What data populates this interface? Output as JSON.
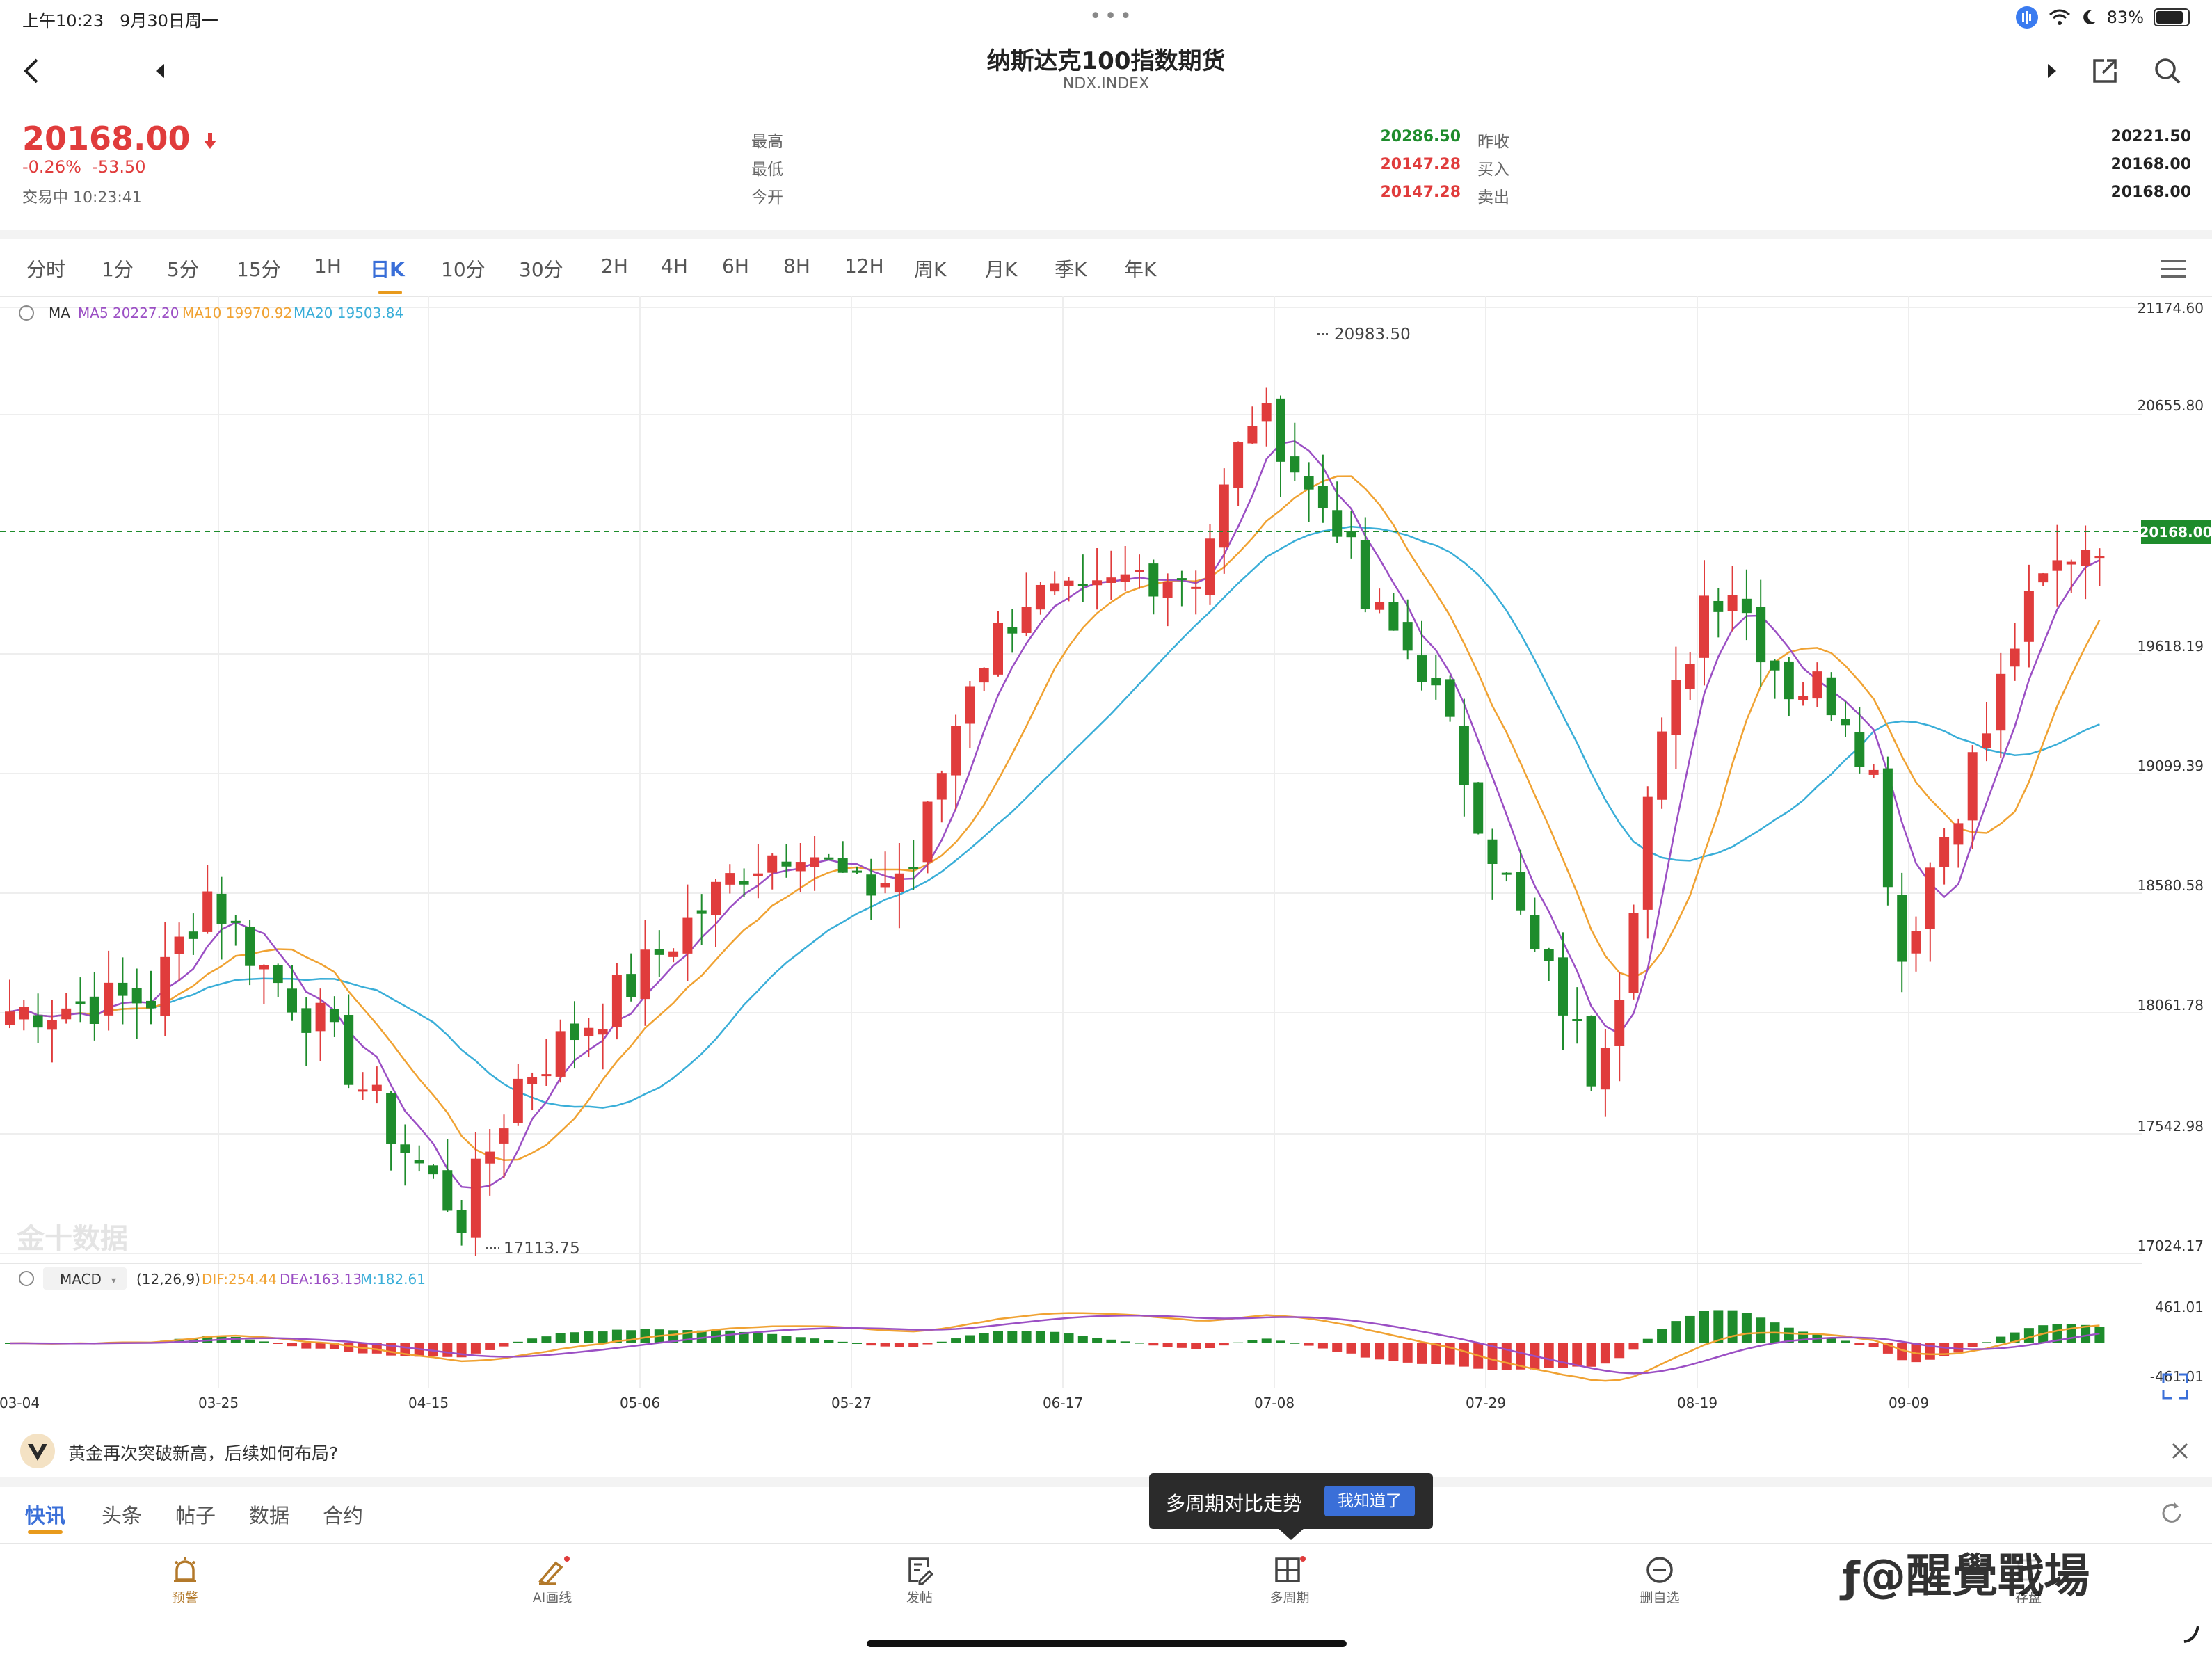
{
  "status_bar": {
    "time": "上午10:23",
    "date": "9月30日周一",
    "battery": "83%"
  },
  "header": {
    "title": "纳斯达克100指数期货",
    "subtitle": "NDX.INDEX"
  },
  "quote": {
    "price": "20168.00",
    "change_pct": "-0.26%",
    "change_abs": "-53.50",
    "status": "交易中 10:23:41",
    "left_labels": [
      "最高",
      "最低",
      "今开"
    ],
    "left_values": [
      "20286.50",
      "20147.28",
      "20147.28"
    ],
    "right_labels": [
      "昨收",
      "买入",
      "卖出"
    ],
    "right_values": [
      "20221.50",
      "20168.00",
      "20168.00"
    ]
  },
  "colors": {
    "up": "#e03c3c",
    "down": "#1e8c2c",
    "accent": "#3a6fd8",
    "ma5": "#9b4fc4",
    "ma10": "#f0a232",
    "ma20": "#3aaed8"
  },
  "periods": [
    "分时",
    "1分",
    "5分",
    "15分",
    "1H",
    "日K",
    "10分",
    "30分",
    "2H",
    "4H",
    "6H",
    "8H",
    "12H",
    "周K",
    "月K",
    "季K",
    "年K"
  ],
  "active_period": "日K",
  "chart_data": [
    {
      "type": "candlestick",
      "legend": {
        "name": "MA",
        "ma5": "MA5 20227.20",
        "ma10": "MA10 19970.92",
        "ma20": "MA20 19503.84"
      },
      "y_ticks": [
        "21174.60",
        "20655.80",
        "19618.19",
        "19099.39",
        "18580.58",
        "18061.78",
        "17542.98",
        "17024.17"
      ],
      "ylim": [
        17024.17,
        21174.6
      ],
      "x_ticks": [
        "03-04",
        "03-25",
        "04-15",
        "05-06",
        "05-27",
        "06-17",
        "07-08",
        "07-29",
        "08-19",
        "09-09"
      ],
      "current_price_label": "20168.00",
      "max_label": "20983.50",
      "min_label": "17113.75",
      "watermark": "金十数据"
    },
    {
      "type": "macd",
      "legend": {
        "name": "MACD",
        "params": "(12,26,9)",
        "dif": "DIF:254.44",
        "dea": "DEA:163.13",
        "m": "M:182.61"
      },
      "y_ticks": [
        "461.01",
        "-461.01"
      ]
    }
  ],
  "news": {
    "text": "黄金再次突破新高，后续如何布局?"
  },
  "feed_tabs": [
    "快讯",
    "头条",
    "帖子",
    "数据",
    "合约"
  ],
  "tooltip": {
    "text": "多周期对比走势",
    "button": "我知道了"
  },
  "toolbar": [
    "预警",
    "AI画线",
    "发帖",
    "多周期",
    "删自选",
    "存盘"
  ],
  "overlay_watermark": "@醒覺戰場"
}
